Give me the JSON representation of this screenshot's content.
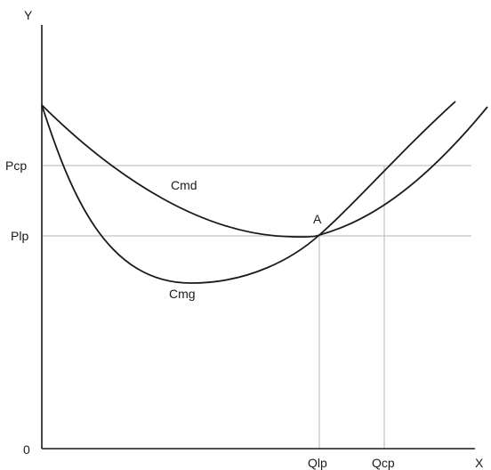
{
  "axes": {
    "y_label": "Y",
    "x_label": "X",
    "origin_label": "0"
  },
  "price_levels": {
    "upper": "Pcp",
    "lower": "Plp"
  },
  "quantity_levels": {
    "left": "Qlp",
    "right": "Qcp"
  },
  "curves": {
    "average_cost": "Cmd",
    "marginal_cost": "Cmg"
  },
  "point": {
    "label": "A"
  },
  "colors": {
    "axis": "#1a1a1a",
    "curve": "#1a1a1a",
    "guide": "#b5b5b5"
  }
}
